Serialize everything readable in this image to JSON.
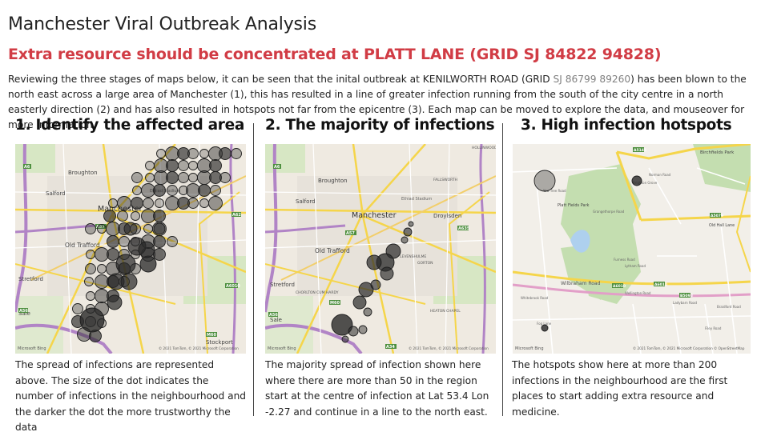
{
  "report": {
    "title": "Manchester Viral Outbreak Analysis",
    "subtitle": "Extra resource should be concentrated at PLATT LANE (GRID SJ 84822 94828)",
    "intro_part1": "Reviewing the three stages of maps below, it can be seen that the inital outbreak at KENILWORTH ROAD (GRID ",
    "intro_grid": "SJ 86799 89260",
    "intro_part2": ") has been blown to the north east across a large area of Manchester (1), this has resulted in a line of greater infection running from the south of the city centre in a north easterly direction (2) and has also resulted in hotspots not far from the epicentre (3).  Each map can be moved to explore the data, and mouseover for more information."
  },
  "panels": [
    {
      "heading": "1. Identify the affected area",
      "description": "The spread of infections are represented above. The size of the dot indicates the number of infections in the neighbourhood and the darker the dot the more trustworthy the data",
      "map_labels": [
        "Broughton",
        "Salford",
        "Manchester",
        "Old Trafford",
        "Stretford",
        "Sale",
        "Stockport",
        "Ethiad Stadium"
      ],
      "copyright": "© 2021 TomTom, © 2021 Microsoft Corporation",
      "brand": "Microsoft Bing"
    },
    {
      "heading": "2. The majority of infections",
      "description": "The majority spread of infection shown here where there are more than 50 in the region start at the centre of infection at Lat 53.4 Lon -2.27 and continue in a line to the north east.",
      "map_labels": [
        "Broughton",
        "Salford",
        "Manchester",
        "Droylsden",
        "Old Trafford",
        "Stretford",
        "Sale",
        "CHORLTON CUM HARDY",
        "LEVENSHULME",
        "GORTON",
        "FALLSWORTH",
        "HOLLINWOOD",
        "HEATON CHAPEL",
        "Ethiad Stadium"
      ],
      "copyright": "© 2021 TomTom, © 2021 Microsoft Corporation",
      "brand": "Microsoft Bing"
    },
    {
      "heading": "3. High infection hotspots",
      "description": "The hotspots show here at more than 200 infections in the neighbourhood are the first places to start adding extra resource and medicine.",
      "map_labels": [
        "Birchfields Park",
        "Platt Fields Park",
        "Old Hall Lane",
        "Wilbraham Road",
        "Yew Tree Road",
        "Furness Road",
        "Brighton Grove",
        "Braidford Road",
        "Ladybarn Road",
        "Whitebrook Road",
        "Fog Lane",
        "Wellington Road",
        "Norman Road",
        "Lytham Road",
        "Grangethorpe Road",
        "Filey Road"
      ],
      "copyright": "© 2021 TomTom, © 2021 Microsoft Corporation © OpenStreetMap",
      "brand": "Microsoft Bing"
    }
  ],
  "colors": {
    "subtitle": "#d13c45",
    "grid_ref": "#808080",
    "map_bg": "#efeae1",
    "motorway": "#b184c6",
    "a_road": "#f5d54a",
    "park": "#c4deb0",
    "water": "#aed0ee",
    "bubble_fill": "rgba(60,60,60,0.55)",
    "bubble_stroke": "#1e1e1e"
  },
  "road_badges": [
    "A57",
    "A6",
    "A34",
    "A56",
    "A5103",
    "A560",
    "A62",
    "A663",
    "A6010",
    "M60",
    "M602",
    "A5079",
    "A5145",
    "A6010"
  ]
}
